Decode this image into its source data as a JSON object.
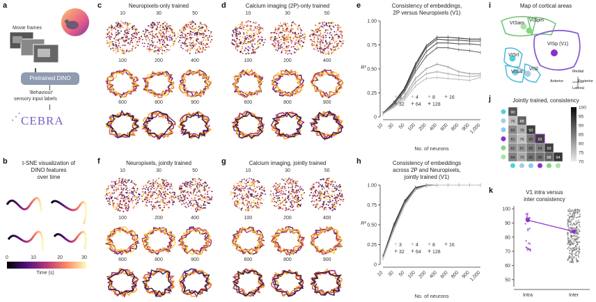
{
  "panels": {
    "a": {
      "label": "a",
      "movie_frames": "Movie frames",
      "dino": "Pretrained DINO",
      "behaviour_line1": "'Behaviour'",
      "behaviour_line2": "sensory input labels",
      "cebra": "CEBRA"
    },
    "b": {
      "label": "b",
      "title_lines": [
        "t-SNE visualization of",
        "DINO features",
        "over time"
      ],
      "colorbar": {
        "ticks": [
          "0",
          "10",
          "20",
          "30"
        ],
        "label": "Time (s)"
      }
    },
    "c": {
      "label": "c",
      "title": "Neuropixels-only trained",
      "row1": [
        "10",
        "30",
        "50"
      ],
      "row2": [
        "100",
        "200",
        "400"
      ],
      "row3": [
        "600",
        "800",
        "900"
      ]
    },
    "d": {
      "label": "d",
      "title": "Calcium imaging (2P)-only trained",
      "row1": [
        "10",
        "30",
        "50"
      ],
      "row2": [
        "100",
        "200",
        "400"
      ],
      "row3": [
        "600",
        "800",
        "900"
      ]
    },
    "f": {
      "label": "f",
      "title": "Neuropixels, jointly trained",
      "row1": [
        "10",
        "30",
        "50"
      ],
      "row2": [
        "100",
        "200",
        "400"
      ],
      "row3": [
        "600",
        "800",
        "900"
      ]
    },
    "g": {
      "label": "g",
      "title": "Calcium imaging, jointly trained",
      "row1": [
        "10",
        "30",
        "50"
      ],
      "row2": [
        "100",
        "200",
        "400"
      ],
      "row3": [
        "600",
        "800",
        "900"
      ]
    },
    "e": {
      "label": "e",
      "title_lines": [
        "Consistency of embeddings,",
        "2P versus Neuropixels (V1)"
      ],
      "ylabel": "R²",
      "xlabel": "No. of neurons",
      "legend": [
        "3",
        "4",
        "8",
        "16",
        "32",
        "64",
        "128"
      ]
    },
    "h": {
      "label": "h",
      "title_lines": [
        "Consistency of embeddings",
        "across 2P and Neuropixels,",
        "jointly trained (V1)"
      ],
      "ylabel": "R²",
      "xlabel": "No. of neurons",
      "legend": [
        "3",
        "4",
        "8",
        "16",
        "32",
        "64",
        "128"
      ]
    },
    "i": {
      "label": "i",
      "title": "Map of cortical areas",
      "areas": [
        "VISam",
        "VISpm",
        "VISp (V1)",
        "VISrl",
        "VISal",
        "VISl"
      ],
      "compass": {
        "medial": "Medial",
        "anterior": "Anterior",
        "posterior": "Posterior",
        "lateral": "Lateral"
      }
    },
    "j": {
      "label": "j",
      "title": "Jointly trained, consistency",
      "colorbar_ticks": [
        "100",
        "95",
        "90",
        "85",
        "80",
        "75",
        "70"
      ],
      "rows": [
        [
          "90"
        ],
        [
          "76",
          "88"
        ],
        [
          "83",
          "78",
          "93"
        ],
        [
          "81",
          "76",
          "85",
          "93"
        ],
        [
          "82",
          "81",
          "85",
          "84",
          "93"
        ],
        [
          "84",
          "79",
          "86",
          "86",
          "88",
          "94"
        ]
      ]
    },
    "k": {
      "label": "k",
      "title_lines": [
        "V1 intra versus",
        "inter consistency"
      ],
      "yticks": [
        "100",
        "90",
        "80",
        "70",
        "60",
        "50"
      ],
      "xticks": [
        "Intra",
        "Inter"
      ]
    }
  },
  "chart_data": [
    {
      "type": "line",
      "id": "e",
      "title": "Consistency of embeddings, 2P versus Neuropixels (V1)",
      "xlabel": "No. of neurons",
      "ylabel": "R²",
      "ylim": [
        0,
        1
      ],
      "categories": [
        "10",
        "30",
        "50",
        "100",
        "200",
        "400",
        "600",
        "800",
        "900",
        "1,000"
      ],
      "yticks": [
        "0",
        "0.25",
        "0.50",
        "0.75",
        "1.00"
      ],
      "series": [
        {
          "name": "128",
          "values": [
            0.04,
            0.15,
            0.3,
            0.55,
            0.74,
            0.83,
            0.83,
            0.82,
            0.81,
            0.81
          ]
        },
        {
          "name": "64",
          "values": [
            0.04,
            0.15,
            0.29,
            0.53,
            0.72,
            0.81,
            0.8,
            0.8,
            0.79,
            0.79
          ]
        },
        {
          "name": "32",
          "values": [
            0.04,
            0.14,
            0.28,
            0.5,
            0.68,
            0.77,
            0.77,
            0.76,
            0.76,
            0.75
          ]
        },
        {
          "name": "16",
          "values": [
            0.04,
            0.13,
            0.26,
            0.47,
            0.63,
            0.72,
            0.72,
            0.7,
            0.69,
            0.67
          ]
        },
        {
          "name": "8",
          "values": [
            0.03,
            0.12,
            0.22,
            0.4,
            0.5,
            0.55,
            0.52,
            0.47,
            0.45,
            0.45
          ]
        },
        {
          "name": "4",
          "values": [
            0.03,
            0.11,
            0.2,
            0.36,
            0.45,
            0.47,
            0.45,
            0.43,
            0.42,
            0.43
          ]
        },
        {
          "name": "3",
          "values": [
            0.03,
            0.1,
            0.18,
            0.32,
            0.4,
            0.41,
            0.4,
            0.39,
            0.38,
            0.41
          ]
        }
      ]
    },
    {
      "type": "line",
      "id": "h",
      "title": "Consistency of embeddings across 2P and Neuropixels, jointly trained (V1)",
      "xlabel": "No. of neurons",
      "ylabel": "R²",
      "ylim": [
        0,
        1
      ],
      "categories": [
        "10",
        "30",
        "50",
        "100",
        "200",
        "400",
        "600",
        "800",
        "900",
        "1,000"
      ],
      "yticks": [
        "0",
        "0.25",
        "0.50",
        "0.75",
        "1.00"
      ],
      "series": [
        {
          "name": "128",
          "values": [
            0.1,
            0.5,
            0.8,
            0.97,
            1.0,
            1.0,
            1.0,
            1.0,
            1.0,
            1.0
          ]
        },
        {
          "name": "64",
          "values": [
            0.09,
            0.48,
            0.79,
            0.96,
            0.99,
            1.0,
            1.0,
            1.0,
            1.0,
            1.0
          ]
        },
        {
          "name": "32",
          "values": [
            0.09,
            0.47,
            0.78,
            0.96,
            0.99,
            1.0,
            1.0,
            1.0,
            1.0,
            1.0
          ]
        },
        {
          "name": "16",
          "values": [
            0.08,
            0.46,
            0.77,
            0.95,
            0.99,
            1.0,
            1.0,
            1.0,
            1.0,
            1.0
          ]
        },
        {
          "name": "8",
          "values": [
            0.08,
            0.45,
            0.76,
            0.95,
            0.99,
            1.0,
            1.0,
            1.0,
            1.0,
            1.0
          ]
        },
        {
          "name": "4",
          "values": [
            0.07,
            0.44,
            0.75,
            0.94,
            0.99,
            1.0,
            1.0,
            1.0,
            1.0,
            1.0
          ]
        },
        {
          "name": "3",
          "values": [
            0.07,
            0.43,
            0.74,
            0.94,
            0.99,
            1.0,
            1.0,
            1.0,
            1.0,
            1.0
          ]
        }
      ]
    },
    {
      "type": "scatter",
      "id": "k",
      "title": "V1 intra versus inter consistency",
      "ylim": [
        45,
        102
      ],
      "categories": [
        "Intra",
        "Inter"
      ],
      "means": [
        92,
        84
      ]
    }
  ]
}
